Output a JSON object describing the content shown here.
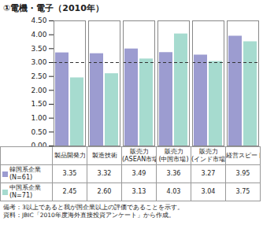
{
  "chart_data": {
    "type": "bar",
    "title": "①電機・電子（2010年）",
    "categories": [
      "製品開発力",
      "製造技術",
      "販売力(ASEAN市場)",
      "販売力(中国市場)",
      "販売力(インド市場)",
      "経営スピード"
    ],
    "series": [
      {
        "name": "韓国系企業(N=61)",
        "color": "#9c9cd0",
        "values": [
          3.35,
          3.32,
          3.49,
          3.36,
          3.27,
          3.95
        ],
        "value_labels": [
          "3.35",
          "3.32",
          "3.49",
          "3.36",
          "3.27",
          "3.95"
        ]
      },
      {
        "name": "中国系企業(N=71)",
        "color": "#a6dbcf",
        "values": [
          2.45,
          2.6,
          3.13,
          4.03,
          3.04,
          3.75
        ],
        "value_labels": [
          "2.45",
          "2.60",
          "3.13",
          "4.03",
          "3.04",
          "3.75"
        ]
      }
    ],
    "ylim": [
      0,
      4.5
    ],
    "yticks": [
      {
        "value": 0,
        "label": "0.00"
      },
      {
        "value": 0.5,
        "label": "0.50"
      },
      {
        "value": 1,
        "label": "1.00"
      },
      {
        "value": 1.5,
        "label": "1.50"
      },
      {
        "value": 2,
        "label": "2.00"
      },
      {
        "value": 2.5,
        "label": "2.50"
      },
      {
        "value": 3,
        "label": "3.00"
      },
      {
        "value": 3.5,
        "label": "3.50"
      },
      {
        "value": 4,
        "label": "4.00"
      },
      {
        "value": 4.5,
        "label": "4.50"
      }
    ],
    "reference_line": 3,
    "grid": false,
    "tick_labels": "y",
    "notes": [
      "備考：3以上であると我が国企業以上の評価であることを示す。",
      "資料：JBIC「2010年度海外直接投資アンケート」から作成。"
    ]
  }
}
